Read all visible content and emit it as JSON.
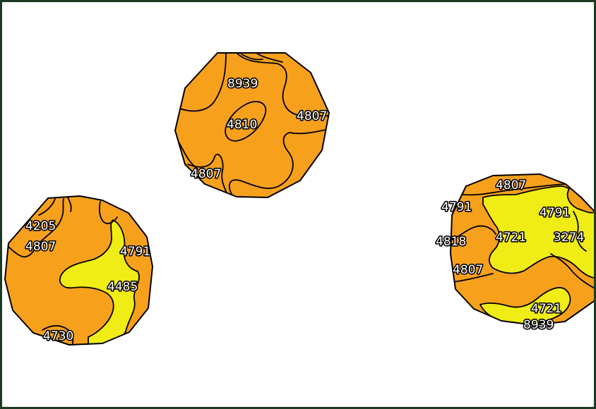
{
  "colors": {
    "frame": "#1b3a22",
    "background": "#ffffff",
    "map_unit_a": "#f7a01c",
    "map_unit_b": "#f0ec16",
    "boundary": "#000000",
    "label_text": "#ffffff",
    "label_halo": "#000000"
  },
  "map": {
    "patches": [
      {
        "id": "top",
        "labels": [
          "8939",
          "4810",
          "4807",
          "4807"
        ]
      },
      {
        "id": "left",
        "labels": [
          "4205",
          "4807",
          "4791",
          "4485",
          "4730"
        ]
      },
      {
        "id": "right",
        "labels": [
          "4807",
          "4791",
          "4791",
          "4818",
          "4721",
          "3274",
          "4807",
          "4721",
          "8939"
        ]
      }
    ]
  }
}
